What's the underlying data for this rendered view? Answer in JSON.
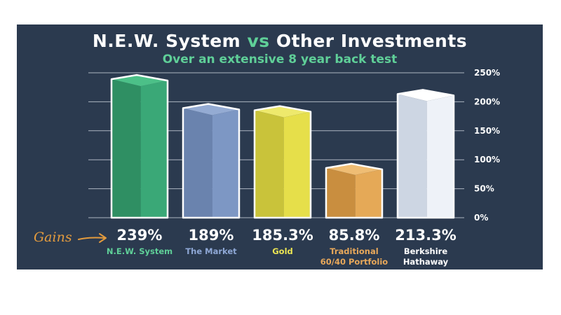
{
  "title_main": "N.E.W. System",
  "title_vs": "vs",
  "title_rest": "Other Investments",
  "subtitle": "Over an extensive 8 year back test",
  "gains_label": "Gains",
  "colors": {
    "background": "#2b3a4f",
    "accent_green": "#5fcf98",
    "gains_orange": "#e39b3e"
  },
  "chart_data": {
    "type": "bar",
    "categories": [
      [
        "N.E.W. System"
      ],
      [
        "The Market"
      ],
      [
        "Gold"
      ],
      [
        "Traditional",
        "60/40 Portfolio"
      ],
      [
        "Berkshire",
        "Hathaway"
      ]
    ],
    "values": [
      239,
      189,
      185.3,
      85.8,
      213.3
    ],
    "value_labels": [
      "239%",
      "189%",
      "185.3%",
      "85.8%",
      "213.3%"
    ],
    "bar_colors": [
      {
        "front": "#3aa877",
        "side": "#2f8f63",
        "top": "#4cc088",
        "label": "#5fcf98"
      },
      {
        "front": "#7d97c4",
        "side": "#6a83ae",
        "top": "#94abd3",
        "label": "#8fa8d6"
      },
      {
        "front": "#e6df4a",
        "side": "#c9c33a",
        "top": "#eee96c",
        "label": "#ece553"
      },
      {
        "front": "#e5a957",
        "side": "#c98e3f",
        "top": "#efbd74",
        "label": "#e8a85a"
      },
      {
        "front": "#eef2f8",
        "side": "#cdd6e3",
        "top": "#ffffff",
        "label": "#ffffff"
      }
    ],
    "yticks": [
      "0%",
      "50%",
      "100%",
      "150%",
      "200%",
      "250%"
    ],
    "ylim": [
      0,
      250
    ],
    "grid": true
  }
}
